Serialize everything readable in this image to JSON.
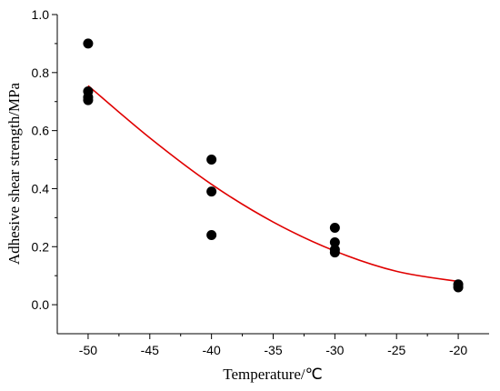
{
  "chart_data": {
    "type": "scatter",
    "title": "",
    "xlabel": "Temperature/℃",
    "ylabel": "Adhesive shear strength/MPa",
    "xlim": [
      -52.5,
      -17.5
    ],
    "ylim": [
      -0.1,
      1.0
    ],
    "xticks": [
      -50,
      -45,
      -40,
      -35,
      -30,
      -25,
      -20
    ],
    "xtick_labels": [
      "-50",
      "-45",
      "-40",
      "-35",
      "-30",
      "-25",
      "-20"
    ],
    "yticks": [
      0.0,
      0.2,
      0.4,
      0.6,
      0.8,
      1.0
    ],
    "ytick_labels": [
      "0.0",
      "0.2",
      "0.4",
      "0.6",
      "0.8",
      "1.0"
    ],
    "grid": false,
    "series": [
      {
        "kind": "scatter",
        "color": "#000000",
        "points": [
          {
            "x": -50,
            "y": 0.9
          },
          {
            "x": -50,
            "y": 0.735
          },
          {
            "x": -50,
            "y": 0.715
          },
          {
            "x": -50,
            "y": 0.705
          },
          {
            "x": -40,
            "y": 0.5
          },
          {
            "x": -40,
            "y": 0.39
          },
          {
            "x": -40,
            "y": 0.24
          },
          {
            "x": -30,
            "y": 0.265
          },
          {
            "x": -30,
            "y": 0.215
          },
          {
            "x": -30,
            "y": 0.19
          },
          {
            "x": -30,
            "y": 0.18
          },
          {
            "x": -20,
            "y": 0.07
          },
          {
            "x": -20,
            "y": 0.06
          }
        ]
      },
      {
        "kind": "fit-line",
        "color": "#e00000",
        "points": [
          {
            "x": -50,
            "y": 0.755
          },
          {
            "x": -45,
            "y": 0.575
          },
          {
            "x": -40,
            "y": 0.415
          },
          {
            "x": -35,
            "y": 0.285
          },
          {
            "x": -30,
            "y": 0.185
          },
          {
            "x": -25,
            "y": 0.115
          },
          {
            "x": -20,
            "y": 0.08
          }
        ]
      }
    ]
  }
}
